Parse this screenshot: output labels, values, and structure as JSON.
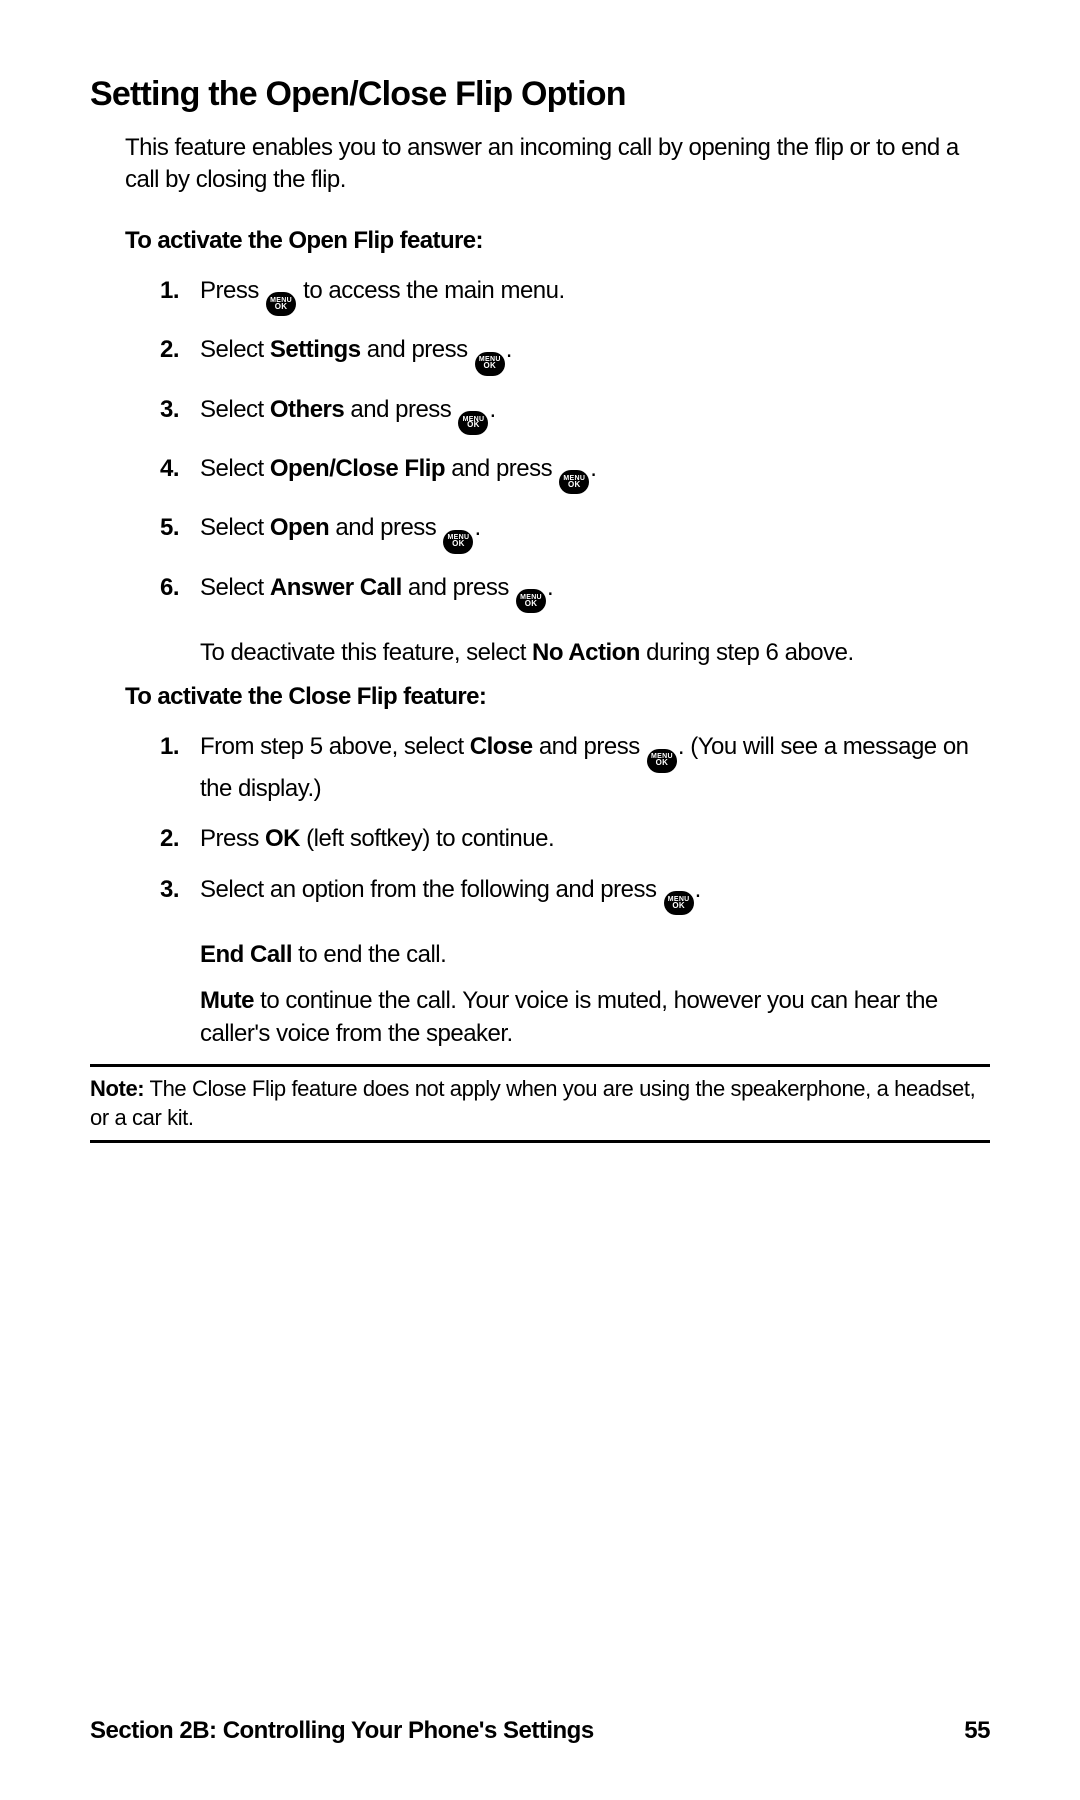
{
  "title": "Setting the Open/Close Flip Option",
  "intro": "This feature enables you to answer an incoming call by opening the flip or to end a call by closing the flip.",
  "subhead_open": "To activate the Open Flip feature:",
  "open_steps": {
    "s1_pre": "Press ",
    "s1_post": " to access the main menu.",
    "s2_pre": "Select ",
    "s2_bold": "Settings",
    "s2_mid": " and press ",
    "s2_post": ".",
    "s3_pre": "Select ",
    "s3_bold": "Others",
    "s3_mid": " and press ",
    "s3_post": ".",
    "s4_pre": "Select ",
    "s4_bold": "Open/Close Flip",
    "s4_mid": " and press ",
    "s4_post": ".",
    "s5_pre": "Select ",
    "s5_bold": "Open",
    "s5_mid": " and press ",
    "s5_post": ".",
    "s6_pre": "Select ",
    "s6_bold": "Answer Call",
    "s6_mid": " and press ",
    "s6_post": "."
  },
  "deactivate_pre": "To deactivate this feature, select ",
  "deactivate_bold": "No Action",
  "deactivate_post": " during step 6 above.",
  "subhead_close": "To activate the Close Flip feature:",
  "close_steps": {
    "s1_pre": "From step 5 above, select ",
    "s1_bold": "Close",
    "s1_mid": " and press ",
    "s1_post": ". (You will see a message on the display.)",
    "s2_pre": "Press ",
    "s2_bold": "OK",
    "s2_post": " (left softkey) to continue.",
    "s3_pre": "Select an option from the following and press ",
    "s3_post": "."
  },
  "option_end_bold": "End Call",
  "option_end_post": " to end the call.",
  "option_mute_bold": "Mute",
  "option_mute_post": " to continue the call. Your voice is muted, however you can hear the caller's voice from the speaker.",
  "note_bold": "Note:",
  "note_text": " The Close Flip feature does not apply when you are using the speakerphone, a headset, or a car kit.",
  "footer_section": "Section 2B: Controlling Your Phone's Settings",
  "footer_page": "55",
  "icon": {
    "top": "MENU",
    "bot": "OK"
  },
  "nums": {
    "n1": "1.",
    "n2": "2.",
    "n3": "3.",
    "n4": "4.",
    "n5": "5.",
    "n6": "6."
  }
}
